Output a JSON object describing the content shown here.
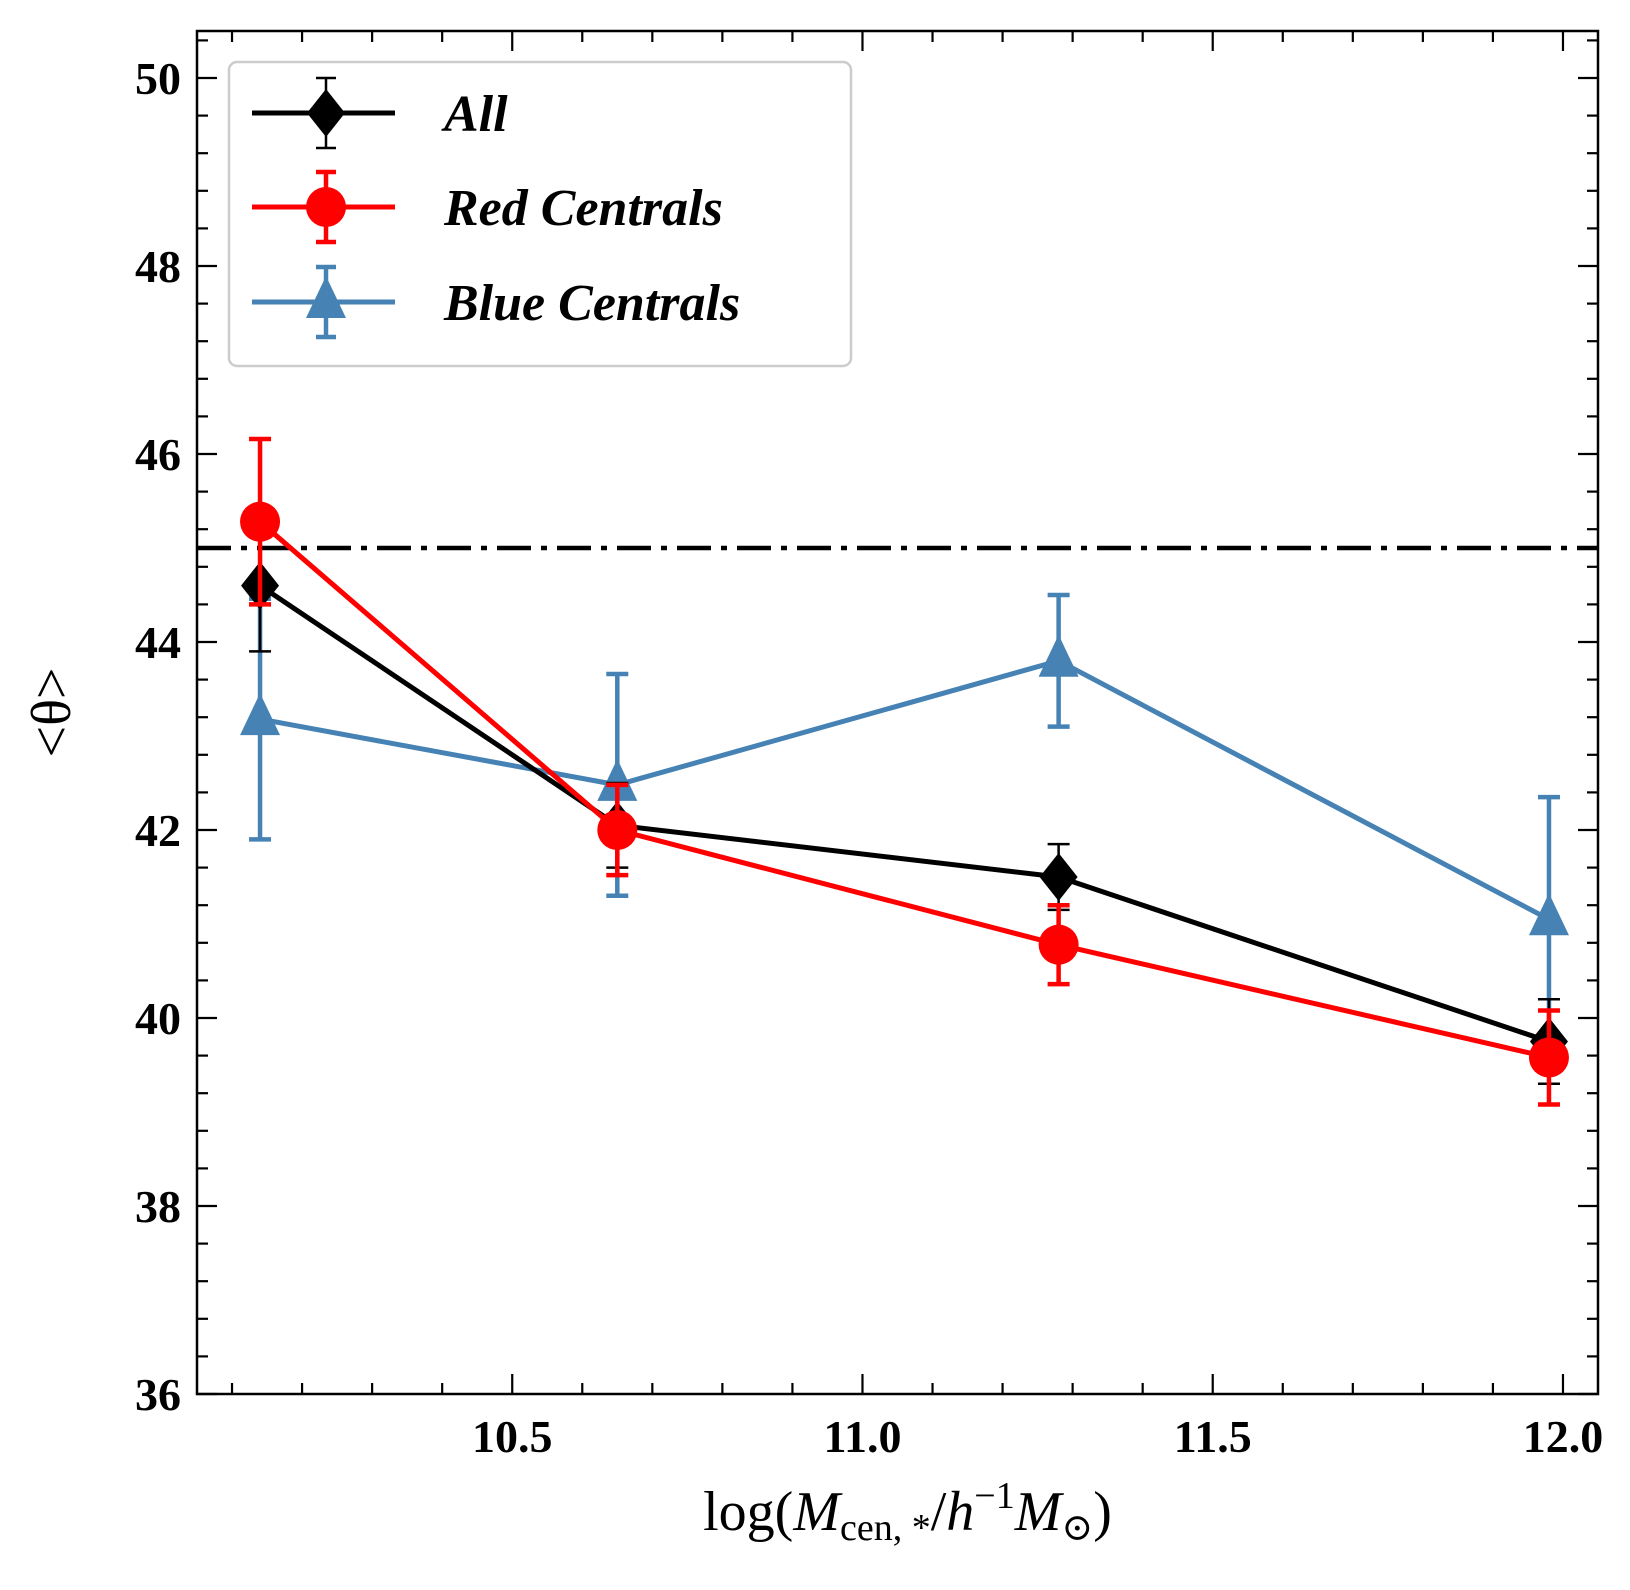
{
  "chart_data": {
    "type": "line",
    "xlabel": {
      "prefix": "log(",
      "var": "M",
      "sub": "cen, *",
      "slash": "/",
      "h": "h",
      "sup": "−1",
      "var2": "M",
      "sub2": "⊙",
      "suffix": ")"
    },
    "ylabel": "<θ>",
    "xlim": [
      10.05,
      12.05
    ],
    "ylim": [
      36,
      50.5
    ],
    "xticks": [
      10.5,
      11.0,
      11.5,
      12.0
    ],
    "xtick_labels": [
      "10.5",
      "11.0",
      "11.5",
      "12.0"
    ],
    "yticks": [
      36,
      38,
      40,
      42,
      44,
      46,
      48,
      50
    ],
    "ytick_labels": [
      "36",
      "38",
      "40",
      "42",
      "44",
      "46",
      "48",
      "50"
    ],
    "reference_line": {
      "y": 45,
      "style": "dash-dot",
      "color": "#000000"
    },
    "legend_position": "top-left",
    "series": [
      {
        "name": "All",
        "color": "#000000",
        "marker": "diamond",
        "x": [
          10.14,
          10.65,
          11.28,
          11.98
        ],
        "y": [
          44.6,
          42.05,
          41.5,
          39.75
        ],
        "err": [
          0.7,
          0.45,
          0.35,
          0.45
        ]
      },
      {
        "name": "Red Centrals",
        "color": "#ff0000",
        "marker": "circle",
        "x": [
          10.14,
          10.65,
          11.28,
          11.98
        ],
        "y": [
          45.28,
          42.0,
          40.78,
          39.58
        ],
        "err": [
          0.88,
          0.48,
          0.42,
          0.5
        ]
      },
      {
        "name": "Blue Centrals",
        "color": "#4682b4",
        "marker": "triangle",
        "x": [
          10.14,
          10.65,
          11.28,
          11.98
        ],
        "y": [
          43.18,
          42.48,
          43.8,
          41.05
        ],
        "err": [
          1.28,
          1.18,
          0.7,
          1.3
        ]
      }
    ]
  }
}
